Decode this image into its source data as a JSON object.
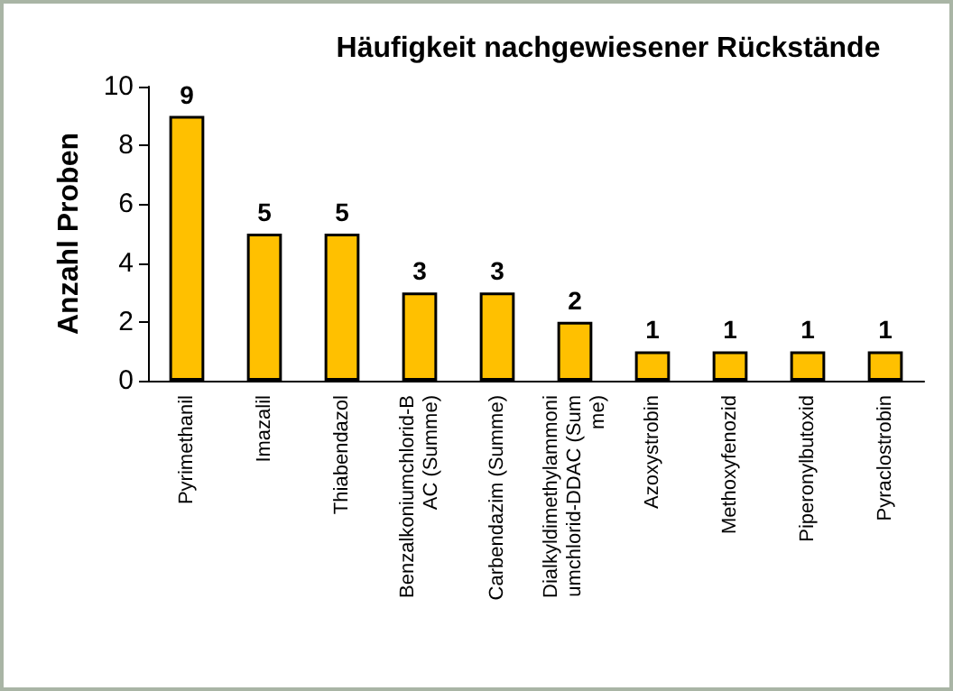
{
  "chart_data": {
    "type": "bar",
    "title": "Häufigkeit nachgewiesener Rückstände",
    "ylabel": "Anzahl Proben",
    "categories": [
      "Pyrimethanil",
      "Imazalil",
      "Thiabendazol",
      "Benzalkoniumchlorid-BAC (Summe)",
      "Carbendazim (Summe)",
      "Dialkyldimethylammoniumchlorid-DDAC (Summe)",
      "Azoxystrobin",
      "Methoxyfenozid",
      "Piperonylbutoxid",
      "Pyraclostrobin"
    ],
    "values": [
      9,
      5,
      5,
      3,
      3,
      2,
      1,
      1,
      1,
      1
    ],
    "color": "#ffc000",
    "ylim": [
      0,
      10
    ],
    "yticks": [
      0,
      2,
      4,
      6,
      8,
      10
    ],
    "grid": false,
    "data_labels": true
  }
}
